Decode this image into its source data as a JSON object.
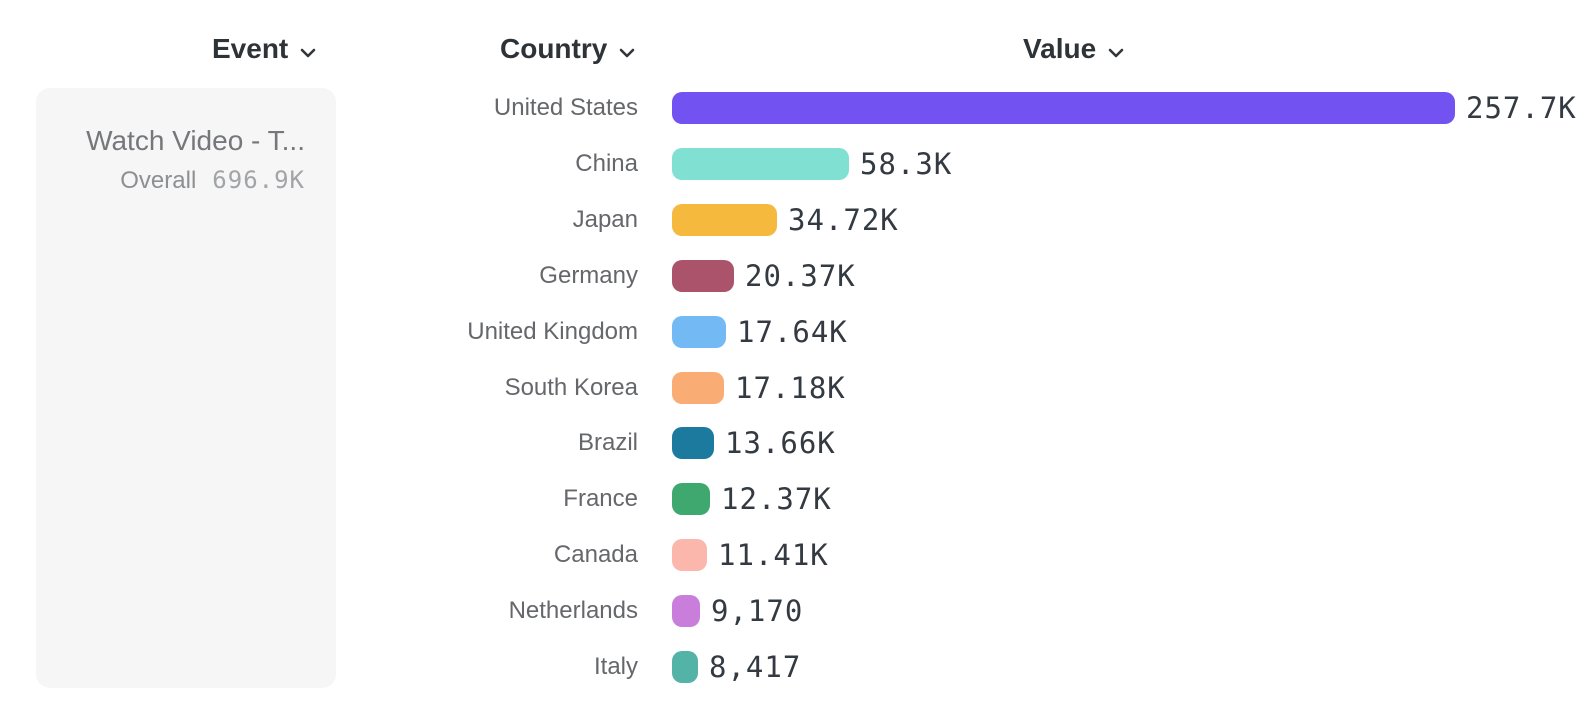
{
  "headers": {
    "event": "Event",
    "country": "Country",
    "value": "Value"
  },
  "event_card": {
    "title": "Watch Video - T...",
    "metric_label": "Overall",
    "metric_value": "696.9K"
  },
  "chart_data": {
    "type": "bar",
    "orientation": "horizontal",
    "title": "",
    "xlabel": "",
    "ylabel": "Country",
    "grid": false,
    "legend": "none",
    "xlim": [
      0,
      257700
    ],
    "categories": [
      "United States",
      "China",
      "Japan",
      "Germany",
      "United Kingdom",
      "South Korea",
      "Brazil",
      "France",
      "Canada",
      "Netherlands",
      "Italy"
    ],
    "values": [
      257700,
      58300,
      34720,
      20370,
      17640,
      17180,
      13660,
      12370,
      11410,
      9170,
      8417
    ],
    "value_labels": [
      "257.7K",
      "58.3K",
      "34.72K",
      "20.37K",
      "17.64K",
      "17.18K",
      "13.66K",
      "12.37K",
      "11.41K",
      "9,170",
      "8,417"
    ],
    "bar_colors": [
      "#7352F2",
      "#80E0D2",
      "#F5B93E",
      "#AC536C",
      "#73BAF5",
      "#F9AC74",
      "#1B7A9E",
      "#3FA86F",
      "#FBB7AB",
      "#C97EDC",
      "#53B3A6"
    ]
  },
  "icons": {
    "chevron_down": "chevron-down"
  }
}
